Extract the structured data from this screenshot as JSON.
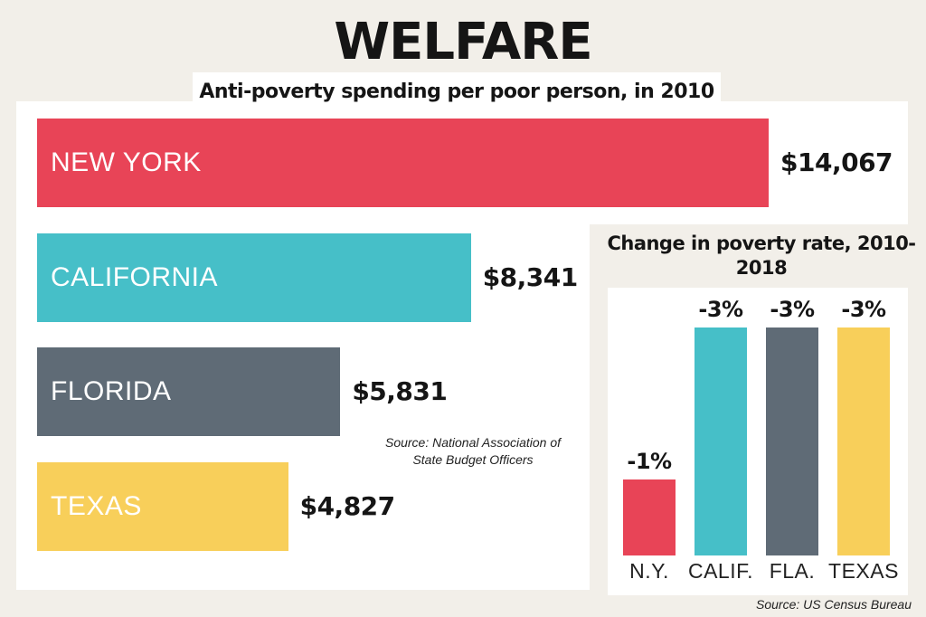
{
  "title": "WELFARE",
  "chart_data": [
    {
      "type": "bar",
      "orientation": "horizontal",
      "title": "Anti-poverty spending per poor person, in 2010",
      "categories": [
        "NEW YORK",
        "CALIFORNIA",
        "FLORIDA",
        "TEXAS"
      ],
      "values": [
        14067,
        8341,
        5831,
        4827
      ],
      "value_labels": [
        "$14,067",
        "$8,341",
        "$5,831",
        "$4,827"
      ],
      "colors": [
        "#e84457",
        "#46bfc8",
        "#5f6b76",
        "#f8cf5a"
      ],
      "source": "Source: National Association of State Budget Officers"
    },
    {
      "type": "bar",
      "orientation": "vertical",
      "title": "Change in poverty rate, 2010-2018",
      "categories": [
        "N.Y.",
        "CALIF.",
        "FLA.",
        "TEXAS"
      ],
      "values": [
        -1,
        -3,
        -3,
        -3
      ],
      "value_labels": [
        "-1%",
        "-3%",
        "-3%",
        "-3%"
      ],
      "colors": [
        "#e84457",
        "#46bfc8",
        "#5f6b76",
        "#f8cf5a"
      ],
      "source": "Source: US Census Bureau"
    }
  ]
}
